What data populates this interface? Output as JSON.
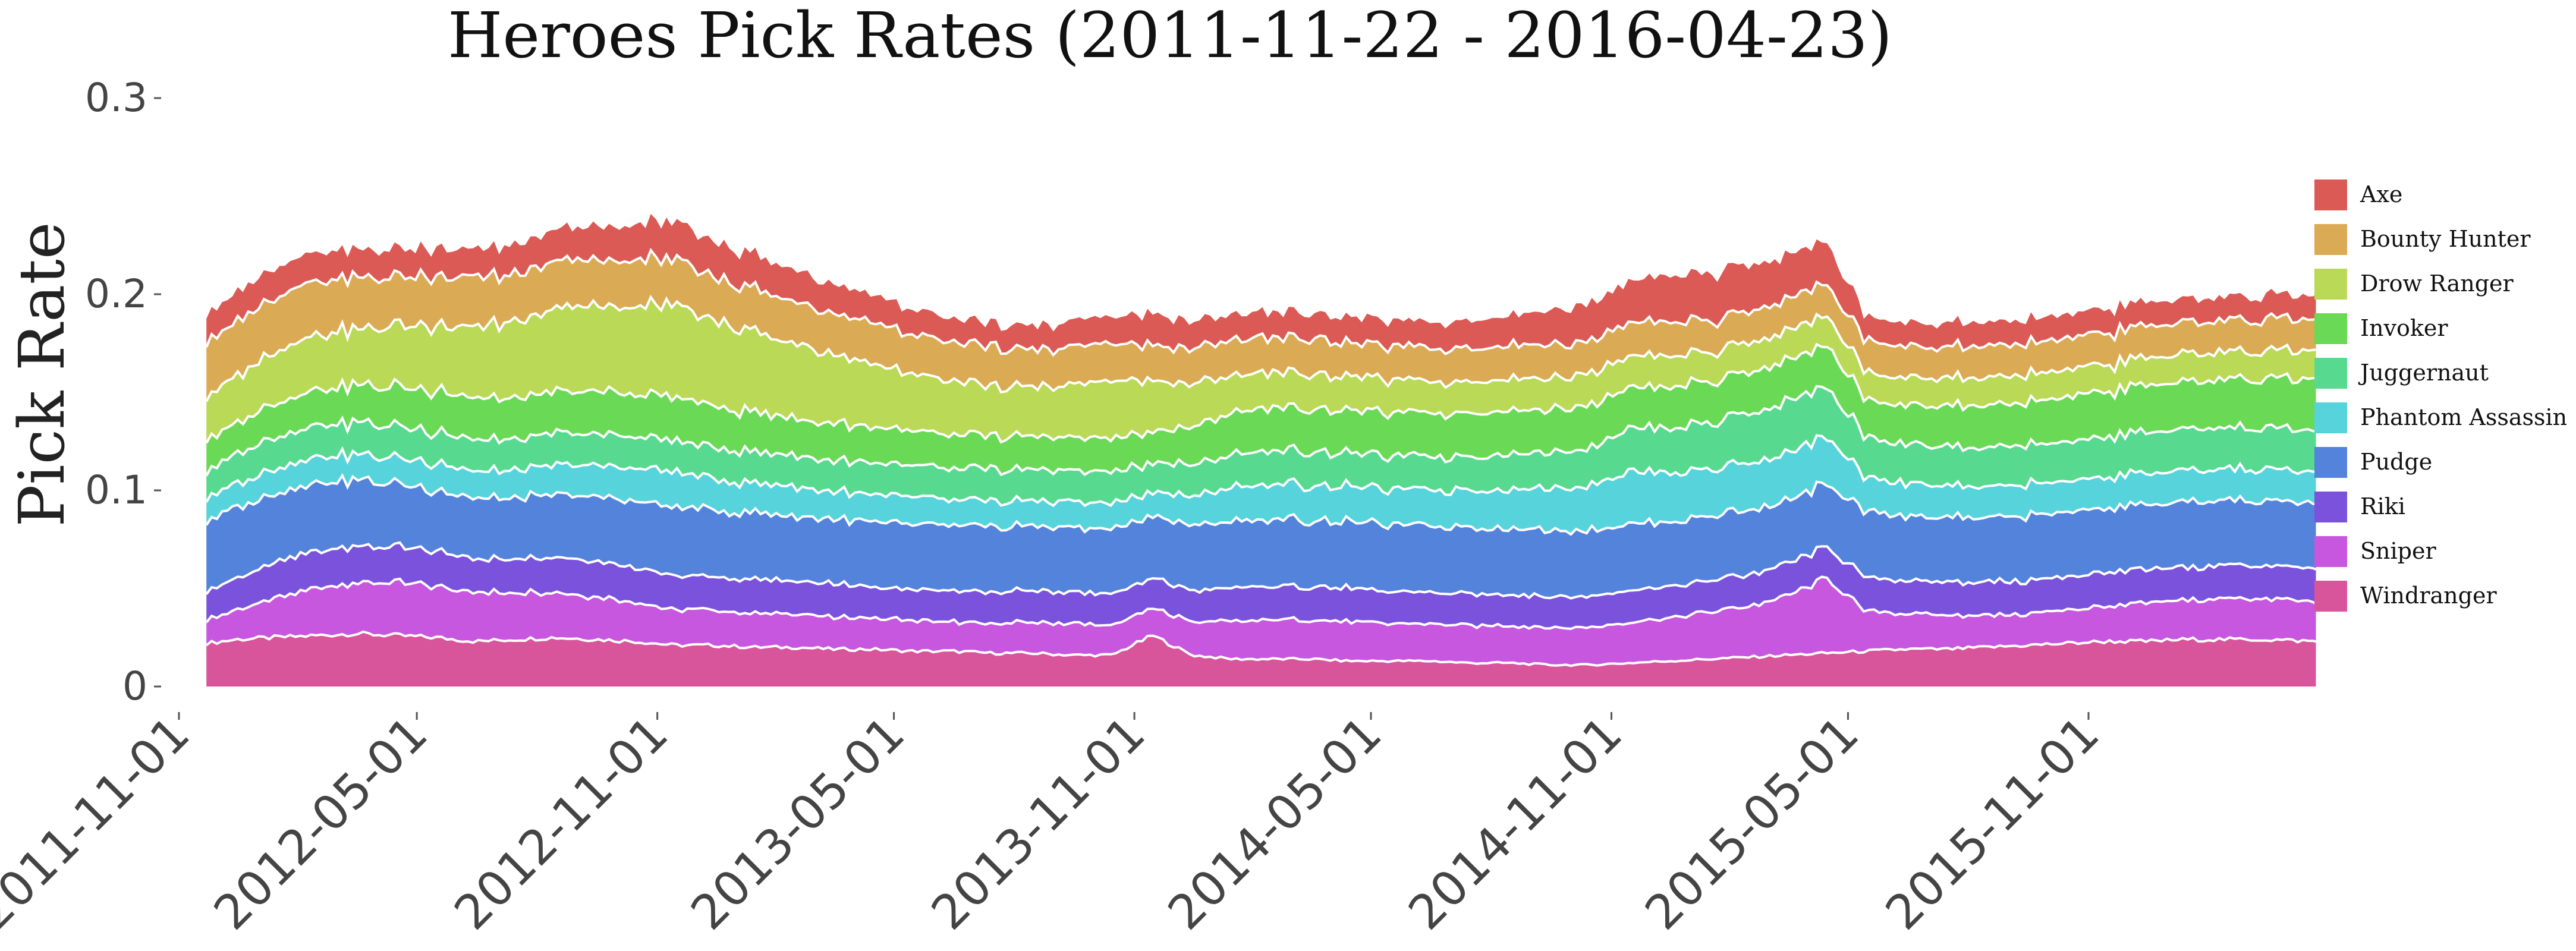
{
  "chart_data": {
    "type": "area",
    "stacked": true,
    "title": "Heroes Pick Rates (2011-11-22 - 2016-04-23)",
    "xlabel": "",
    "ylabel": "Pick Rate",
    "x_range": [
      "2011-11-22",
      "2016-04-23"
    ],
    "ylim": [
      0,
      0.3
    ],
    "grid": false,
    "legend_position": "right",
    "x_ticks": [
      "2011-11-01",
      "2012-05-01",
      "2012-11-01",
      "2013-05-01",
      "2013-11-01",
      "2014-05-01",
      "2014-11-01",
      "2015-05-01",
      "2015-11-01"
    ],
    "y_ticks": [
      {
        "value": 0,
        "label": "0"
      },
      {
        "value": 0.1,
        "label": "0.1"
      },
      {
        "value": 0.2,
        "label": "0.2"
      },
      {
        "value": 0.3,
        "label": "0.3"
      }
    ],
    "x": [
      "2011-11-22",
      "2011-12-15",
      "2012-01-15",
      "2012-02-15",
      "2012-03-15",
      "2012-04-15",
      "2012-05-15",
      "2012-06-15",
      "2012-07-15",
      "2012-08-15",
      "2012-09-15",
      "2012-10-15",
      "2012-11-15",
      "2012-12-15",
      "2013-01-15",
      "2013-02-15",
      "2013-03-15",
      "2013-04-15",
      "2013-05-15",
      "2013-06-15",
      "2013-07-15",
      "2013-08-15",
      "2013-09-15",
      "2013-10-15",
      "2013-11-15",
      "2013-12-15",
      "2014-01-15",
      "2014-02-15",
      "2014-03-15",
      "2014-04-15",
      "2014-05-15",
      "2014-06-15",
      "2014-07-15",
      "2014-08-15",
      "2014-09-15",
      "2014-10-15",
      "2014-11-15",
      "2014-12-15",
      "2015-01-15",
      "2015-02-15",
      "2015-03-15",
      "2015-04-15",
      "2015-05-15",
      "2015-06-15",
      "2015-07-15",
      "2015-08-15",
      "2015-09-15",
      "2015-10-15",
      "2015-11-15",
      "2015-12-15",
      "2016-01-15",
      "2016-02-15",
      "2016-03-15",
      "2016-04-23"
    ],
    "series": [
      {
        "name": "Windranger",
        "color": "#d8559c",
        "values": [
          0.022,
          0.024,
          0.025,
          0.026,
          0.027,
          0.026,
          0.025,
          0.023,
          0.024,
          0.025,
          0.024,
          0.023,
          0.021,
          0.021,
          0.02,
          0.02,
          0.019,
          0.019,
          0.018,
          0.018,
          0.017,
          0.017,
          0.016,
          0.016,
          0.026,
          0.016,
          0.014,
          0.014,
          0.014,
          0.013,
          0.013,
          0.013,
          0.012,
          0.012,
          0.011,
          0.011,
          0.012,
          0.013,
          0.014,
          0.015,
          0.016,
          0.017,
          0.018,
          0.019,
          0.019,
          0.02,
          0.021,
          0.022,
          0.023,
          0.023,
          0.024,
          0.024,
          0.024,
          0.023
        ]
      },
      {
        "name": "Sniper",
        "color": "#c657de",
        "values": [
          0.012,
          0.015,
          0.02,
          0.024,
          0.026,
          0.027,
          0.026,
          0.025,
          0.024,
          0.023,
          0.022,
          0.02,
          0.018,
          0.018,
          0.017,
          0.017,
          0.016,
          0.016,
          0.016,
          0.015,
          0.015,
          0.016,
          0.016,
          0.015,
          0.014,
          0.017,
          0.019,
          0.02,
          0.02,
          0.02,
          0.019,
          0.019,
          0.019,
          0.019,
          0.019,
          0.019,
          0.021,
          0.022,
          0.024,
          0.026,
          0.03,
          0.038,
          0.02,
          0.018,
          0.017,
          0.016,
          0.016,
          0.017,
          0.018,
          0.019,
          0.02,
          0.021,
          0.021,
          0.02
        ]
      },
      {
        "name": "Riki",
        "color": "#7b52db",
        "values": [
          0.015,
          0.016,
          0.018,
          0.019,
          0.019,
          0.018,
          0.018,
          0.017,
          0.017,
          0.018,
          0.018,
          0.018,
          0.017,
          0.017,
          0.017,
          0.017,
          0.017,
          0.016,
          0.016,
          0.016,
          0.016,
          0.016,
          0.016,
          0.016,
          0.015,
          0.016,
          0.017,
          0.017,
          0.017,
          0.017,
          0.016,
          0.016,
          0.016,
          0.016,
          0.016,
          0.016,
          0.016,
          0.016,
          0.016,
          0.016,
          0.016,
          0.016,
          0.017,
          0.017,
          0.017,
          0.017,
          0.017,
          0.017,
          0.017,
          0.017,
          0.017,
          0.017,
          0.017,
          0.017
        ]
      },
      {
        "name": "Pudge",
        "color": "#5483db",
        "values": [
          0.036,
          0.036,
          0.035,
          0.035,
          0.034,
          0.032,
          0.031,
          0.031,
          0.031,
          0.032,
          0.033,
          0.034,
          0.035,
          0.034,
          0.034,
          0.033,
          0.033,
          0.033,
          0.033,
          0.033,
          0.033,
          0.033,
          0.033,
          0.033,
          0.032,
          0.033,
          0.034,
          0.034,
          0.034,
          0.034,
          0.034,
          0.034,
          0.034,
          0.034,
          0.034,
          0.034,
          0.034,
          0.033,
          0.033,
          0.033,
          0.032,
          0.032,
          0.033,
          0.033,
          0.033,
          0.033,
          0.033,
          0.033,
          0.033,
          0.033,
          0.033,
          0.033,
          0.033,
          0.033
        ]
      },
      {
        "name": "Phantom Assassin",
        "color": "#57d3db",
        "values": [
          0.012,
          0.012,
          0.013,
          0.013,
          0.013,
          0.013,
          0.014,
          0.014,
          0.014,
          0.015,
          0.016,
          0.017,
          0.018,
          0.016,
          0.015,
          0.015,
          0.014,
          0.014,
          0.014,
          0.013,
          0.013,
          0.013,
          0.013,
          0.013,
          0.012,
          0.015,
          0.017,
          0.018,
          0.018,
          0.018,
          0.018,
          0.018,
          0.019,
          0.02,
          0.021,
          0.023,
          0.027,
          0.025,
          0.024,
          0.024,
          0.024,
          0.024,
          0.017,
          0.017,
          0.016,
          0.016,
          0.016,
          0.016,
          0.016,
          0.016,
          0.016,
          0.016,
          0.016,
          0.016
        ]
      },
      {
        "name": "Juggernaut",
        "color": "#57d98f",
        "values": [
          0.014,
          0.015,
          0.016,
          0.016,
          0.016,
          0.016,
          0.016,
          0.016,
          0.016,
          0.016,
          0.016,
          0.016,
          0.016,
          0.016,
          0.016,
          0.016,
          0.016,
          0.016,
          0.016,
          0.016,
          0.016,
          0.016,
          0.016,
          0.016,
          0.015,
          0.016,
          0.017,
          0.017,
          0.017,
          0.017,
          0.017,
          0.017,
          0.017,
          0.018,
          0.018,
          0.019,
          0.022,
          0.023,
          0.024,
          0.025,
          0.026,
          0.025,
          0.021,
          0.02,
          0.02,
          0.02,
          0.02,
          0.02,
          0.021,
          0.021,
          0.021,
          0.021,
          0.021,
          0.021
        ]
      },
      {
        "name": "Invoker",
        "color": "#6ad955",
        "values": [
          0.016,
          0.016,
          0.017,
          0.018,
          0.019,
          0.02,
          0.021,
          0.021,
          0.021,
          0.021,
          0.022,
          0.022,
          0.022,
          0.021,
          0.02,
          0.019,
          0.019,
          0.018,
          0.018,
          0.017,
          0.017,
          0.017,
          0.017,
          0.017,
          0.016,
          0.019,
          0.022,
          0.022,
          0.022,
          0.022,
          0.022,
          0.022,
          0.022,
          0.022,
          0.022,
          0.022,
          0.021,
          0.021,
          0.021,
          0.021,
          0.021,
          0.021,
          0.019,
          0.02,
          0.021,
          0.022,
          0.022,
          0.023,
          0.023,
          0.024,
          0.024,
          0.025,
          0.025,
          0.026
        ]
      },
      {
        "name": "Drow Ranger",
        "color": "#b9d957",
        "values": [
          0.022,
          0.024,
          0.026,
          0.028,
          0.029,
          0.031,
          0.034,
          0.036,
          0.039,
          0.042,
          0.044,
          0.045,
          0.046,
          0.044,
          0.041,
          0.038,
          0.035,
          0.032,
          0.029,
          0.027,
          0.025,
          0.025,
          0.027,
          0.029,
          0.026,
          0.022,
          0.019,
          0.018,
          0.018,
          0.017,
          0.017,
          0.016,
          0.016,
          0.016,
          0.016,
          0.016,
          0.016,
          0.016,
          0.015,
          0.015,
          0.015,
          0.015,
          0.014,
          0.014,
          0.014,
          0.014,
          0.014,
          0.014,
          0.014,
          0.014,
          0.014,
          0.014,
          0.014,
          0.015
        ]
      },
      {
        "name": "Bounty Hunter",
        "color": "#dbaa55",
        "values": [
          0.028,
          0.028,
          0.028,
          0.027,
          0.026,
          0.025,
          0.025,
          0.025,
          0.024,
          0.024,
          0.024,
          0.024,
          0.023,
          0.022,
          0.022,
          0.021,
          0.021,
          0.021,
          0.02,
          0.02,
          0.02,
          0.019,
          0.019,
          0.019,
          0.018,
          0.018,
          0.018,
          0.018,
          0.018,
          0.017,
          0.017,
          0.017,
          0.017,
          0.017,
          0.017,
          0.017,
          0.017,
          0.017,
          0.016,
          0.016,
          0.016,
          0.016,
          0.016,
          0.016,
          0.016,
          0.016,
          0.016,
          0.016,
          0.016,
          0.016,
          0.016,
          0.016,
          0.016,
          0.016
        ]
      },
      {
        "name": "Axe",
        "color": "#db5a55",
        "values": [
          0.014,
          0.015,
          0.015,
          0.015,
          0.014,
          0.014,
          0.014,
          0.014,
          0.015,
          0.016,
          0.017,
          0.018,
          0.019,
          0.018,
          0.017,
          0.016,
          0.015,
          0.014,
          0.013,
          0.012,
          0.012,
          0.012,
          0.013,
          0.014,
          0.016,
          0.014,
          0.013,
          0.013,
          0.013,
          0.013,
          0.013,
          0.013,
          0.014,
          0.015,
          0.017,
          0.019,
          0.021,
          0.023,
          0.024,
          0.024,
          0.022,
          0.021,
          0.012,
          0.012,
          0.012,
          0.012,
          0.012,
          0.012,
          0.012,
          0.012,
          0.012,
          0.012,
          0.012,
          0.012
        ]
      }
    ]
  }
}
